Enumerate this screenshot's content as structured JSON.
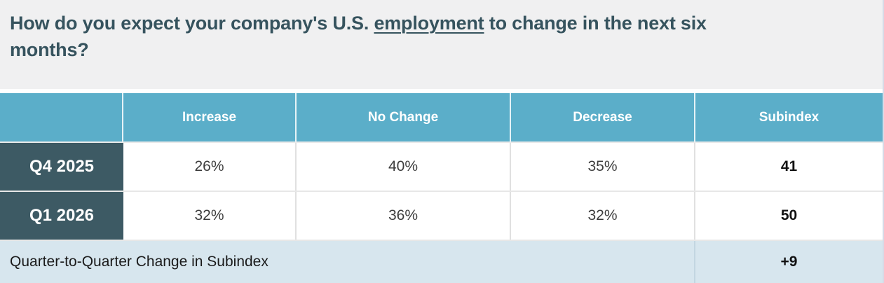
{
  "question": {
    "text_before": "How do you expect your company's U.S. ",
    "underlined_term": "employment",
    "text_after": " to change in the next six months?"
  },
  "table": {
    "header": {
      "row_label": "",
      "increase": "Increase",
      "no_change": "No Change",
      "decrease": "Decrease",
      "subindex": "Subindex"
    },
    "rows": [
      {
        "label": "Q4 2025",
        "increase": "26%",
        "no_change": "40%",
        "decrease": "35%",
        "subindex": "41"
      },
      {
        "label": "Q1 2026",
        "increase": "32%",
        "no_change": "36%",
        "decrease": "32%",
        "subindex": "50"
      }
    ],
    "footer": {
      "label": "Quarter-to-Quarter Change in Subindex",
      "value": "+9"
    }
  },
  "colors": {
    "question_bg": "#F0F0F1",
    "question_text": "#36535E",
    "header_bg": "#5BAEC9",
    "header_text": "#FFFFFF",
    "row_label_bg": "#3D5A64",
    "row_label_text": "#FFFFFF",
    "cell_text": "#3D3D3D",
    "subindex_text": "#121212",
    "footer_bg": "#D7E6EE",
    "footer_text": "#1A1A1A"
  },
  "chart_data": {
    "type": "table",
    "title": "How do you expect your company's U.S. employment to change in the next six months?",
    "columns": [
      "",
      "Increase",
      "No Change",
      "Decrease",
      "Subindex"
    ],
    "rows": [
      [
        "Q4 2025",
        "26%",
        "40%",
        "35%",
        "41"
      ],
      [
        "Q1 2026",
        "32%",
        "36%",
        "32%",
        "50"
      ]
    ],
    "footer_row": [
      "Quarter-to-Quarter Change in Subindex",
      "+9"
    ],
    "notes": "Survey results table; subindex change quarter-to-quarter is +9 (41 to 50)."
  }
}
